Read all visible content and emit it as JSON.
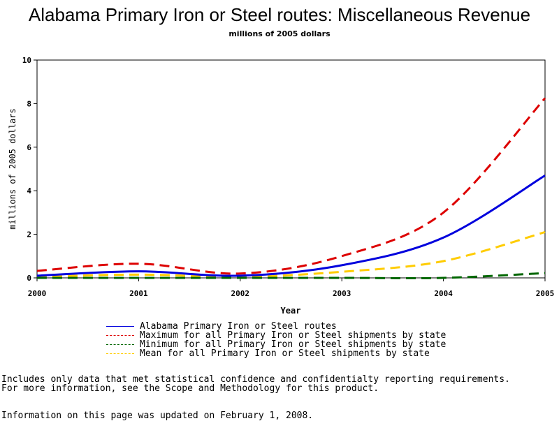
{
  "title": "Alabama Primary Iron or Steel routes: Miscellaneous Revenue",
  "subtitle": "millions of 2005 dollars",
  "chart_data": {
    "type": "line",
    "x": [
      2000,
      2001,
      2002,
      2003,
      2004,
      2005
    ],
    "xlabel": "Year",
    "ylabel": "millions of 2005 dollars",
    "xlim": [
      2000,
      2005
    ],
    "ylim": [
      0,
      10
    ],
    "xticks": [
      "2000",
      "2001",
      "2002",
      "2003",
      "2004",
      "2005"
    ],
    "yticks": [
      "0",
      "2",
      "4",
      "6",
      "8",
      "10"
    ],
    "grid": false,
    "legend_position": "bottom",
    "series": [
      {
        "name": "Alabama Primary Iron or Steel routes",
        "values": [
          0.1,
          0.3,
          0.1,
          0.58,
          1.85,
          4.7
        ],
        "color": "#0000dd",
        "style": "solid"
      },
      {
        "name": "Maximum for all Primary Iron or Steel shipments by state",
        "values": [
          0.32,
          0.65,
          0.2,
          1.0,
          3.0,
          8.25
        ],
        "color": "#dd0000",
        "style": "dashed"
      },
      {
        "name": "Minimum for all Primary Iron or Steel shipments by state",
        "values": [
          0.0,
          0.0,
          0.0,
          0.0,
          0.0,
          0.22
        ],
        "color": "#006600",
        "style": "dashed"
      },
      {
        "name": "Mean for all Primary Iron or Steel shipments by state",
        "values": [
          0.05,
          0.15,
          0.05,
          0.28,
          0.77,
          2.1
        ],
        "color": "#ffcc00",
        "style": "dashed"
      }
    ]
  },
  "notes": [
    "Includes only data that met statistical confidence and confidentialty reporting requirements.",
    "For more information, see the Scope and Methodology for this product."
  ],
  "updated": "Information on this page was updated on February 1, 2008."
}
